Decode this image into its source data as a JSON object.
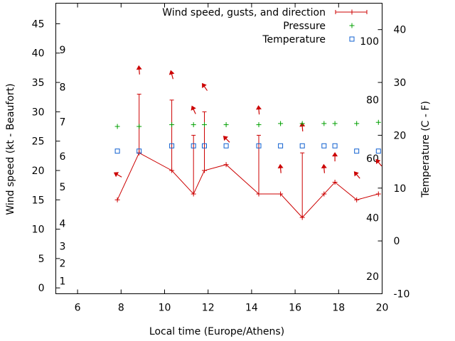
{
  "chart_data": {
    "type": "line",
    "title": "",
    "xlabel": "Local time (Europe/Athens)",
    "ylabel": "Wind speed (kt - Beaufort)",
    "y2label": "Temperature (C - F)",
    "xlim": [
      5,
      20
    ],
    "ylim": [
      -1,
      48.5
    ],
    "y2lim": [
      -10,
      45
    ],
    "x_ticks": [
      6,
      8,
      10,
      12,
      14,
      16,
      18,
      20
    ],
    "y_ticks": [
      0,
      5,
      10,
      15,
      20,
      25,
      30,
      35,
      40,
      45
    ],
    "y2_ticks": [
      -10,
      0,
      10,
      20,
      30,
      40
    ],
    "beaufort_labels": [
      {
        "text": "1",
        "kt": 1.2
      },
      {
        "text": "2",
        "kt": 4.2
      },
      {
        "text": "3",
        "kt": 7.1
      },
      {
        "text": "4",
        "kt": 11
      },
      {
        "text": "5",
        "kt": 17.2
      },
      {
        "text": "6",
        "kt": 22.4
      },
      {
        "text": "7",
        "kt": 28.3
      },
      {
        "text": "8",
        "kt": 34.2
      },
      {
        "text": "9",
        "kt": 40.6
      }
    ],
    "fahrenheit_labels": [
      {
        "text": "20",
        "celsius": -6.7
      },
      {
        "text": "40",
        "celsius": 4.4
      },
      {
        "text": "60",
        "celsius": 15.6
      },
      {
        "text": "80",
        "celsius": 26.7
      },
      {
        "text": "100",
        "celsius": 37.8
      }
    ],
    "legend": [
      {
        "label": "Wind speed, gusts, and direction",
        "color": "#cc0000",
        "marker": "line-plus"
      },
      {
        "label": "Pressure",
        "color": "#00a000",
        "marker": "plus"
      },
      {
        "label": "Temperature",
        "color": "#1060d0",
        "marker": "square"
      }
    ],
    "series": [
      {
        "name": "Wind speed",
        "x": [
          7.83,
          8.83,
          10.33,
          11.33,
          11.83,
          12.83,
          14.33,
          15.33,
          16.33,
          17.33,
          17.83,
          18.83,
          19.83
        ],
        "values": [
          15,
          23,
          20,
          16,
          20,
          21,
          16,
          16,
          12,
          16,
          18,
          15,
          16
        ]
      },
      {
        "name": "Gusts",
        "x": [
          8.83,
          10.33,
          11.33,
          11.83,
          14.33,
          16.33
        ],
        "base": [
          23,
          20,
          16,
          20,
          16,
          12
        ],
        "values": [
          33,
          32,
          26,
          30,
          26,
          23
        ]
      },
      {
        "name": "Wind direction",
        "x": [
          7.83,
          8.83,
          10.33,
          11.33,
          11.83,
          12.83,
          14.33,
          15.33,
          16.33,
          17.33,
          17.83,
          18.83,
          19.83
        ],
        "kt": [
          19.3,
          37.2,
          36.4,
          30.4,
          34.3,
          25.4,
          30.4,
          20.4,
          27.5,
          20.4,
          22.4,
          19.3,
          21.4
        ],
        "angle_deg": [
          300,
          355,
          345,
          335,
          325,
          315,
          355,
          355,
          355,
          355,
          0,
          320,
          320
        ]
      },
      {
        "name": "Pressure",
        "x": [
          7.83,
          8.83,
          10.33,
          11.33,
          11.83,
          12.83,
          14.33,
          15.33,
          16.33,
          17.33,
          17.83,
          18.83,
          19.83
        ],
        "values": [
          27.5,
          27.5,
          27.8,
          27.8,
          27.8,
          27.8,
          27.8,
          28.0,
          28.0,
          28.0,
          28.0,
          28.0,
          28.2
        ]
      },
      {
        "name": "Temperature",
        "x": [
          7.83,
          8.83,
          10.33,
          11.33,
          11.83,
          12.83,
          14.33,
          15.33,
          16.33,
          17.33,
          17.83,
          18.83,
          19.83
        ],
        "values": [
          17,
          17,
          18,
          18,
          18,
          18,
          18,
          18,
          18,
          18,
          18,
          17,
          17
        ]
      }
    ]
  }
}
